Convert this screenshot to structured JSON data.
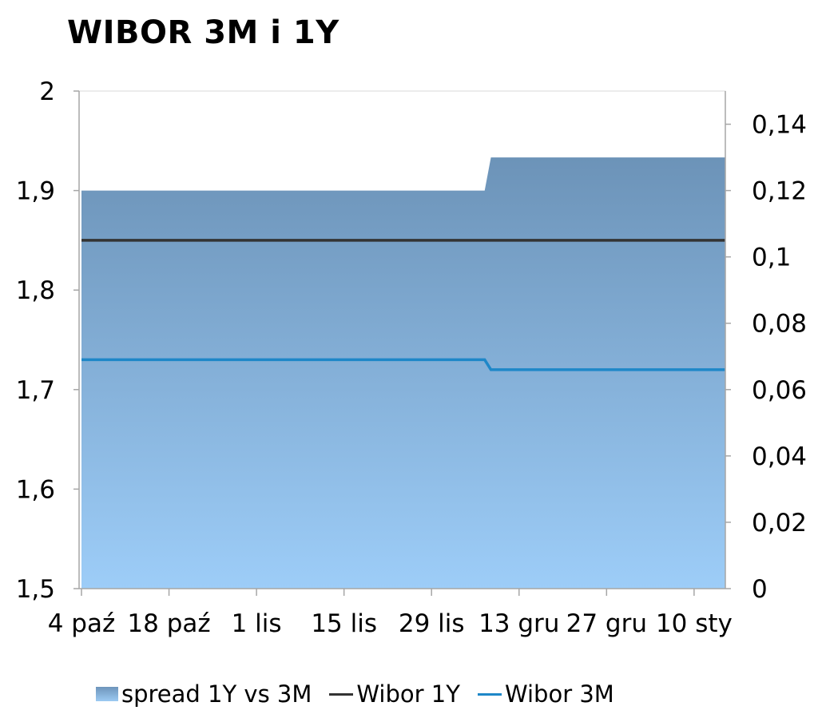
{
  "chart_data": {
    "type": "area",
    "title": "WIBOR 3M i 1Y",
    "x_tick_labels": [
      "4 paź",
      "18 paź",
      "1 lis",
      "15 lis",
      "29 lis",
      "13 gru",
      "27 gru",
      "10 sty"
    ],
    "y_left": {
      "min": 1.5,
      "max": 2.0,
      "ticks": [
        "1,5",
        "1,6",
        "1,7",
        "1,8",
        "1,9",
        "2"
      ]
    },
    "y_right": {
      "min": 0,
      "max": 0.15,
      "ticks": [
        "0",
        "0,02",
        "0,04",
        "0,06",
        "0,08",
        "0,1",
        "0,12",
        "0,14"
      ]
    },
    "x": [
      0,
      64.5,
      65.5,
      103
    ],
    "series": [
      {
        "name": "spread 1Y vs 3M",
        "kind": "area",
        "axis": "right",
        "color": "#6e95bb",
        "values": [
          0.12,
          0.12,
          0.13,
          0.13
        ]
      },
      {
        "name": "Wibor 1Y",
        "kind": "line",
        "axis": "left",
        "color": "#333333",
        "values": [
          1.85,
          1.85,
          1.85,
          1.85
        ]
      },
      {
        "name": "Wibor 3M",
        "kind": "line",
        "axis": "left",
        "color": "#1e87c8",
        "values": [
          1.73,
          1.73,
          1.72,
          1.72
        ]
      }
    ],
    "grid": false,
    "legend_position": "bottom"
  }
}
